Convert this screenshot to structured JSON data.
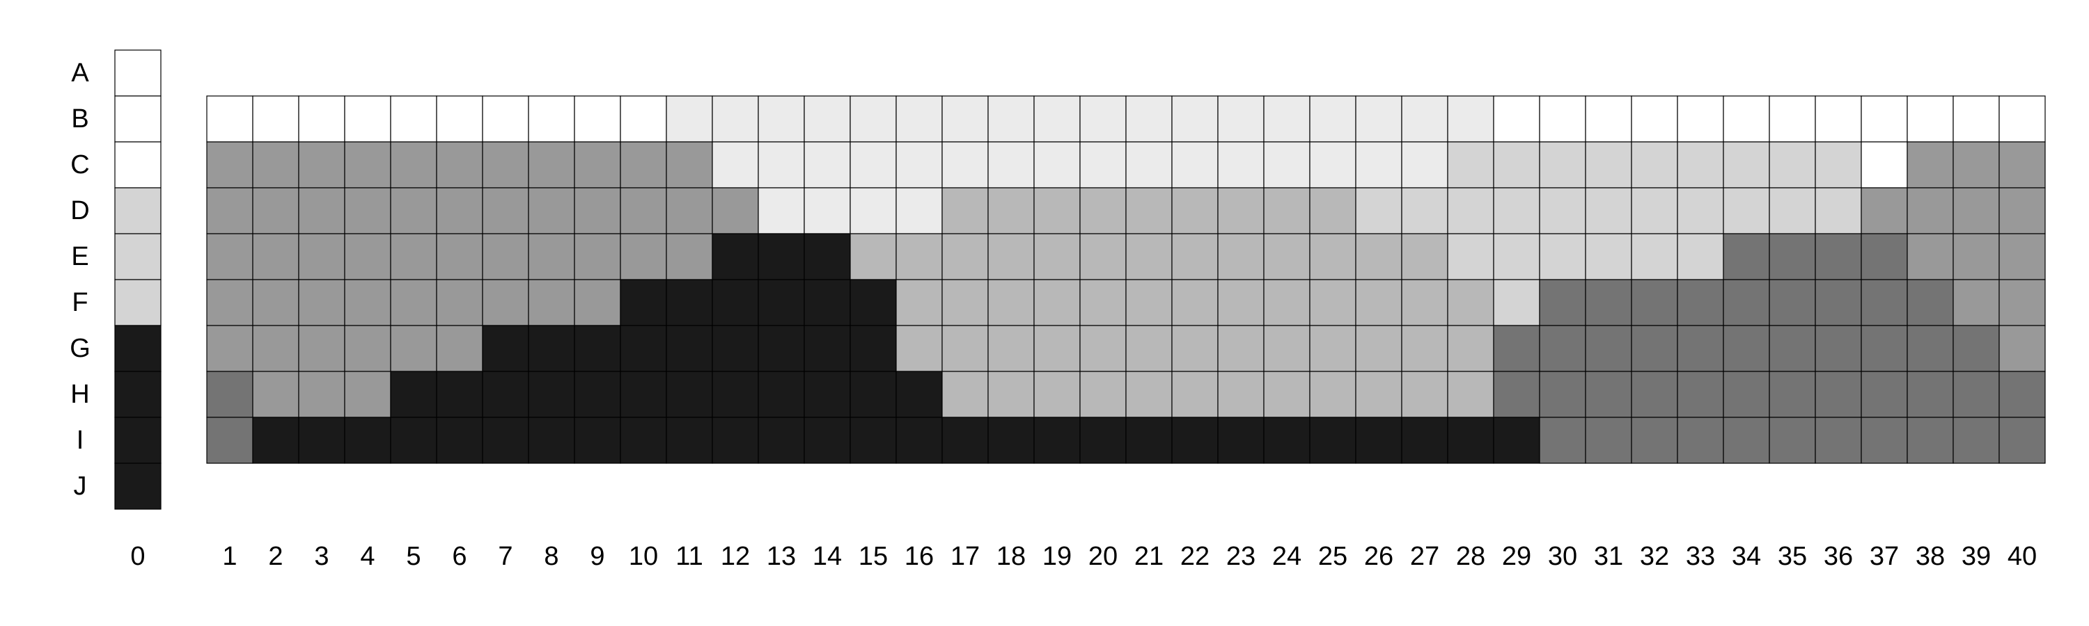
{
  "chart_data": {
    "type": "heatmap",
    "title": "",
    "xlabel": "",
    "ylabel": "",
    "row_labels": [
      "A",
      "B",
      "C",
      "D",
      "E",
      "F",
      "G",
      "H",
      "I",
      "J"
    ],
    "legend_column": {
      "label": "0",
      "levels": [
        0,
        0,
        0,
        2,
        2,
        2,
        6,
        6,
        6,
        6
      ]
    },
    "column_labels": [
      "1",
      "2",
      "3",
      "4",
      "5",
      "6",
      "7",
      "8",
      "9",
      "10",
      "11",
      "12",
      "13",
      "14",
      "15",
      "16",
      "17",
      "18",
      "19",
      "20",
      "21",
      "22",
      "23",
      "24",
      "25",
      "26",
      "27",
      "28",
      "29",
      "30",
      "31",
      "32",
      "33",
      "34",
      "35",
      "36",
      "37",
      "38",
      "39",
      "40"
    ],
    "grid_rows": [
      "B",
      "C",
      "D",
      "E",
      "F",
      "G",
      "H",
      "I"
    ],
    "grid_levels": [
      [
        0,
        0,
        0,
        0,
        0,
        0,
        0,
        0,
        0,
        0,
        1,
        1,
        1,
        1,
        1,
        1,
        1,
        1,
        1,
        1,
        1,
        1,
        1,
        1,
        1,
        1,
        1,
        1,
        0,
        0,
        0,
        0,
        0,
        0,
        0,
        0,
        0,
        0,
        0,
        0
      ],
      [
        4,
        4,
        4,
        4,
        4,
        4,
        4,
        4,
        4,
        4,
        4,
        1,
        1,
        1,
        1,
        1,
        1,
        1,
        1,
        1,
        1,
        1,
        1,
        1,
        1,
        1,
        1,
        2,
        2,
        2,
        2,
        2,
        2,
        2,
        2,
        2,
        0,
        4,
        4,
        4
      ],
      [
        4,
        4,
        4,
        4,
        4,
        4,
        4,
        4,
        4,
        4,
        4,
        4,
        1,
        1,
        1,
        1,
        3,
        3,
        3,
        3,
        3,
        3,
        3,
        3,
        3,
        2,
        2,
        2,
        2,
        2,
        2,
        2,
        2,
        2,
        2,
        2,
        4,
        4,
        4,
        4
      ],
      [
        4,
        4,
        4,
        4,
        4,
        4,
        4,
        4,
        4,
        4,
        4,
        6,
        6,
        6,
        3,
        3,
        3,
        3,
        3,
        3,
        3,
        3,
        3,
        3,
        3,
        3,
        3,
        2,
        2,
        2,
        2,
        2,
        2,
        5,
        5,
        5,
        5,
        4,
        4,
        4
      ],
      [
        4,
        4,
        4,
        4,
        4,
        4,
        4,
        4,
        4,
        6,
        6,
        6,
        6,
        6,
        6,
        3,
        3,
        3,
        3,
        3,
        3,
        3,
        3,
        3,
        3,
        3,
        3,
        3,
        2,
        5,
        5,
        5,
        5,
        5,
        5,
        5,
        5,
        5,
        4,
        4
      ],
      [
        4,
        4,
        4,
        4,
        4,
        4,
        6,
        6,
        6,
        6,
        6,
        6,
        6,
        6,
        6,
        3,
        3,
        3,
        3,
        3,
        3,
        3,
        3,
        3,
        3,
        3,
        3,
        3,
        5,
        5,
        5,
        5,
        5,
        5,
        5,
        5,
        5,
        5,
        5,
        4
      ],
      [
        5,
        4,
        4,
        4,
        6,
        6,
        6,
        6,
        6,
        6,
        6,
        6,
        6,
        6,
        6,
        6,
        3,
        3,
        3,
        3,
        3,
        3,
        3,
        3,
        3,
        3,
        3,
        3,
        5,
        5,
        5,
        5,
        5,
        5,
        5,
        5,
        5,
        5,
        5,
        5
      ],
      [
        5,
        6,
        6,
        6,
        6,
        6,
        6,
        6,
        6,
        6,
        6,
        6,
        6,
        6,
        6,
        6,
        6,
        6,
        6,
        6,
        6,
        6,
        6,
        6,
        6,
        6,
        6,
        6,
        6,
        5,
        5,
        5,
        5,
        5,
        5,
        5,
        5,
        5,
        5,
        5
      ]
    ],
    "colors": [
      "#ffffff",
      "#ebebeb",
      "#d4d4d4",
      "#b8b8b8",
      "#999999",
      "#747474",
      "#1a1a1a"
    ],
    "grid": true,
    "legend": "left"
  }
}
